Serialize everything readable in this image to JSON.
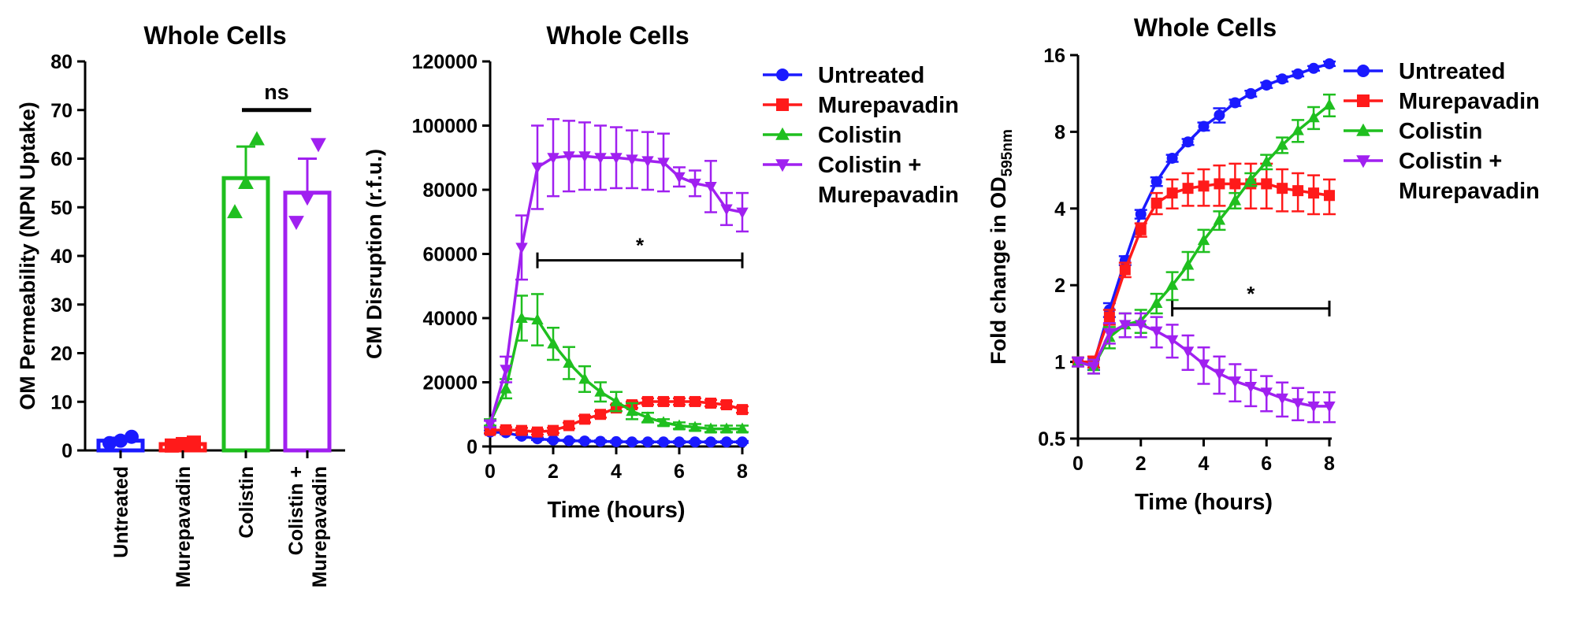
{
  "colors": {
    "untreated": "#1a1aff",
    "murepavadin": "#ff1a1a",
    "colistin": "#1fbf1f",
    "combo": "#a020f0",
    "axis": "#000000"
  },
  "chart_data": [
    {
      "type": "bar",
      "title": "Whole Cells",
      "ylabel": "OM Permeability (NPN Uptake)",
      "ylim": [
        0,
        80
      ],
      "yticks": [
        "0",
        "10",
        "20",
        "30",
        "40",
        "50",
        "60",
        "70",
        "80"
      ],
      "categories": [
        "Untreated",
        "Murepavadin",
        "Colistin",
        "Colistin +\nMurepavadin"
      ],
      "category_lines": [
        [
          "Untreated"
        ],
        [
          "Murepavadin"
        ],
        [
          "Colistin"
        ],
        [
          "Colistin +",
          "Murepavadin"
        ]
      ],
      "values": [
        2,
        1.3,
        56,
        53
      ],
      "errors": [
        0.6,
        0.5,
        6.5,
        7
      ],
      "points": [
        [
          1.5,
          2,
          2.8
        ],
        [
          1,
          1.3,
          1.6
        ],
        [
          49,
          55,
          64
        ],
        [
          47,
          52,
          63
        ]
      ],
      "markers": [
        "circle",
        "square",
        "triangle-up",
        "triangle-down"
      ],
      "annotation": {
        "text": "ns",
        "between": [
          2,
          3
        ],
        "y": 70
      }
    },
    {
      "type": "line",
      "title": "Whole Cells",
      "xlabel": "Time (hours)",
      "ylabel": "CM Disruption (r.f.u.)",
      "xlim": [
        0,
        8
      ],
      "ylim": [
        0,
        120000
      ],
      "xticks": [
        "0",
        "2",
        "4",
        "6",
        "8"
      ],
      "yticks": [
        "0",
        "20000",
        "40000",
        "60000",
        "80000",
        "100000",
        "120000"
      ],
      "x": [
        0,
        0.5,
        1,
        1.5,
        2,
        2.5,
        3,
        3.5,
        4,
        4.5,
        5,
        5.5,
        6,
        6.5,
        7,
        7.5,
        8
      ],
      "series": [
        {
          "name": "Untreated",
          "marker": "circle",
          "values": [
            4500,
            4300,
            3200,
            2400,
            2000,
            1800,
            1700,
            1600,
            1500,
            1400,
            1400,
            1400,
            1400,
            1400,
            1400,
            1400,
            1400
          ],
          "errors": [
            500,
            500,
            500,
            400,
            300,
            300,
            300,
            300,
            300,
            300,
            300,
            300,
            300,
            300,
            300,
            300,
            300
          ]
        },
        {
          "name": "Murepavadin",
          "marker": "square",
          "values": [
            5000,
            5200,
            5000,
            4500,
            5000,
            6500,
            8500,
            10000,
            12000,
            13000,
            14000,
            14000,
            14000,
            14000,
            13500,
            13000,
            11500
          ],
          "errors": [
            800,
            800,
            800,
            800,
            800,
            900,
            1000,
            1000,
            1000,
            1000,
            1000,
            1000,
            1000,
            1000,
            1000,
            1000,
            1000
          ]
        },
        {
          "name": "Colistin",
          "marker": "triangle-up",
          "values": [
            7500,
            18000,
            40000,
            39500,
            32000,
            26000,
            21000,
            17000,
            14000,
            11000,
            9000,
            7500,
            6500,
            6000,
            5500,
            5500,
            5500
          ],
          "errors": [
            1000,
            3000,
            7000,
            8000,
            5000,
            5000,
            4000,
            3000,
            3000,
            2500,
            1500,
            1000,
            1000,
            1000,
            1000,
            1000,
            1000
          ]
        },
        {
          "name": "Colistin +\nMurepavadin",
          "marker": "triangle-down",
          "values": [
            7000,
            24000,
            62000,
            87000,
            90000,
            90500,
            90500,
            90000,
            90000,
            89500,
            89000,
            88500,
            84000,
            82000,
            81000,
            74000,
            73000
          ],
          "errors": [
            1000,
            4000,
            10000,
            13000,
            12000,
            11000,
            10500,
            10000,
            9500,
            9000,
            9000,
            9000,
            3000,
            4000,
            8000,
            5000,
            6000
          ]
        }
      ],
      "legend": {
        "position": "right",
        "entries": [
          [
            "Untreated"
          ],
          [
            "Murepavadin"
          ],
          [
            "Colistin"
          ],
          [
            "Colistin +",
            "Murepavadin"
          ]
        ]
      },
      "annotation": {
        "text": "*",
        "from": 1.5,
        "to": 8,
        "y": 58000
      }
    },
    {
      "type": "line",
      "title": "Whole Cells",
      "xlabel": "Time (hours)",
      "ylabel_main": "Fold change in OD",
      "ylabel_sub": "595nm",
      "yscale": "log2",
      "xlim": [
        0,
        8
      ],
      "ylim": [
        0.5,
        16
      ],
      "xticks": [
        "0",
        "2",
        "4",
        "6",
        "8"
      ],
      "yticks": [
        "0.5",
        "1",
        "2",
        "4",
        "8",
        "16"
      ],
      "x": [
        0,
        0.5,
        1,
        1.5,
        2,
        2.5,
        3,
        3.5,
        4,
        4.5,
        5,
        5.5,
        6,
        6.5,
        7,
        7.5,
        8
      ],
      "series": [
        {
          "name": "Untreated",
          "marker": "circle",
          "values": [
            1,
            0.98,
            1.6,
            2.5,
            3.8,
            5.1,
            6.3,
            7.3,
            8.4,
            9.3,
            10.4,
            11.3,
            12.2,
            12.9,
            13.5,
            14.2,
            14.8
          ],
          "errors": [
            0.04,
            0.05,
            0.1,
            0.1,
            0.15,
            0.2,
            0.2,
            0.2,
            0.3,
            0.6,
            0.3,
            0.3,
            0.3,
            0.3,
            0.3,
            0.3,
            0.3
          ]
        },
        {
          "name": "Murepavadin",
          "marker": "square",
          "values": [
            1,
            1.0,
            1.5,
            2.3,
            3.3,
            4.2,
            4.6,
            4.8,
            4.9,
            5.0,
            5.0,
            5.0,
            5.0,
            4.8,
            4.7,
            4.6,
            4.5
          ],
          "errors": [
            0.04,
            0.05,
            0.1,
            0.15,
            0.2,
            0.4,
            0.6,
            0.7,
            0.8,
            0.9,
            1.0,
            1.0,
            1.0,
            0.9,
            0.8,
            0.8,
            0.7
          ]
        },
        {
          "name": "Colistin",
          "marker": "triangle-up",
          "values": [
            1,
            0.96,
            1.25,
            1.4,
            1.45,
            1.7,
            2.0,
            2.4,
            3.0,
            3.6,
            4.3,
            5.2,
            6.1,
            7.1,
            8.1,
            9.1,
            10.2
          ],
          "errors": [
            0.04,
            0.06,
            0.12,
            0.15,
            0.15,
            0.15,
            0.25,
            0.3,
            0.3,
            0.3,
            0.3,
            0.3,
            0.4,
            0.5,
            0.8,
            0.9,
            1.0
          ]
        },
        {
          "name": "Colistin +\nMurepavadin",
          "marker": "triangle-down",
          "values": [
            1,
            0.96,
            1.3,
            1.4,
            1.4,
            1.32,
            1.22,
            1.1,
            0.98,
            0.9,
            0.84,
            0.8,
            0.76,
            0.72,
            0.69,
            0.67,
            0.67
          ],
          "errors": [
            0.04,
            0.06,
            0.12,
            0.15,
            0.15,
            0.18,
            0.18,
            0.17,
            0.16,
            0.15,
            0.14,
            0.13,
            0.12,
            0.11,
            0.1,
            0.09,
            0.09
          ]
        }
      ],
      "legend": {
        "position": "right",
        "entries": [
          [
            "Untreated"
          ],
          [
            "Murepavadin"
          ],
          [
            "Colistin"
          ],
          [
            "Colistin +",
            "Murepavadin"
          ]
        ]
      },
      "annotation": {
        "text": "*",
        "from": 3,
        "to": 8,
        "y": 1.62
      }
    }
  ]
}
